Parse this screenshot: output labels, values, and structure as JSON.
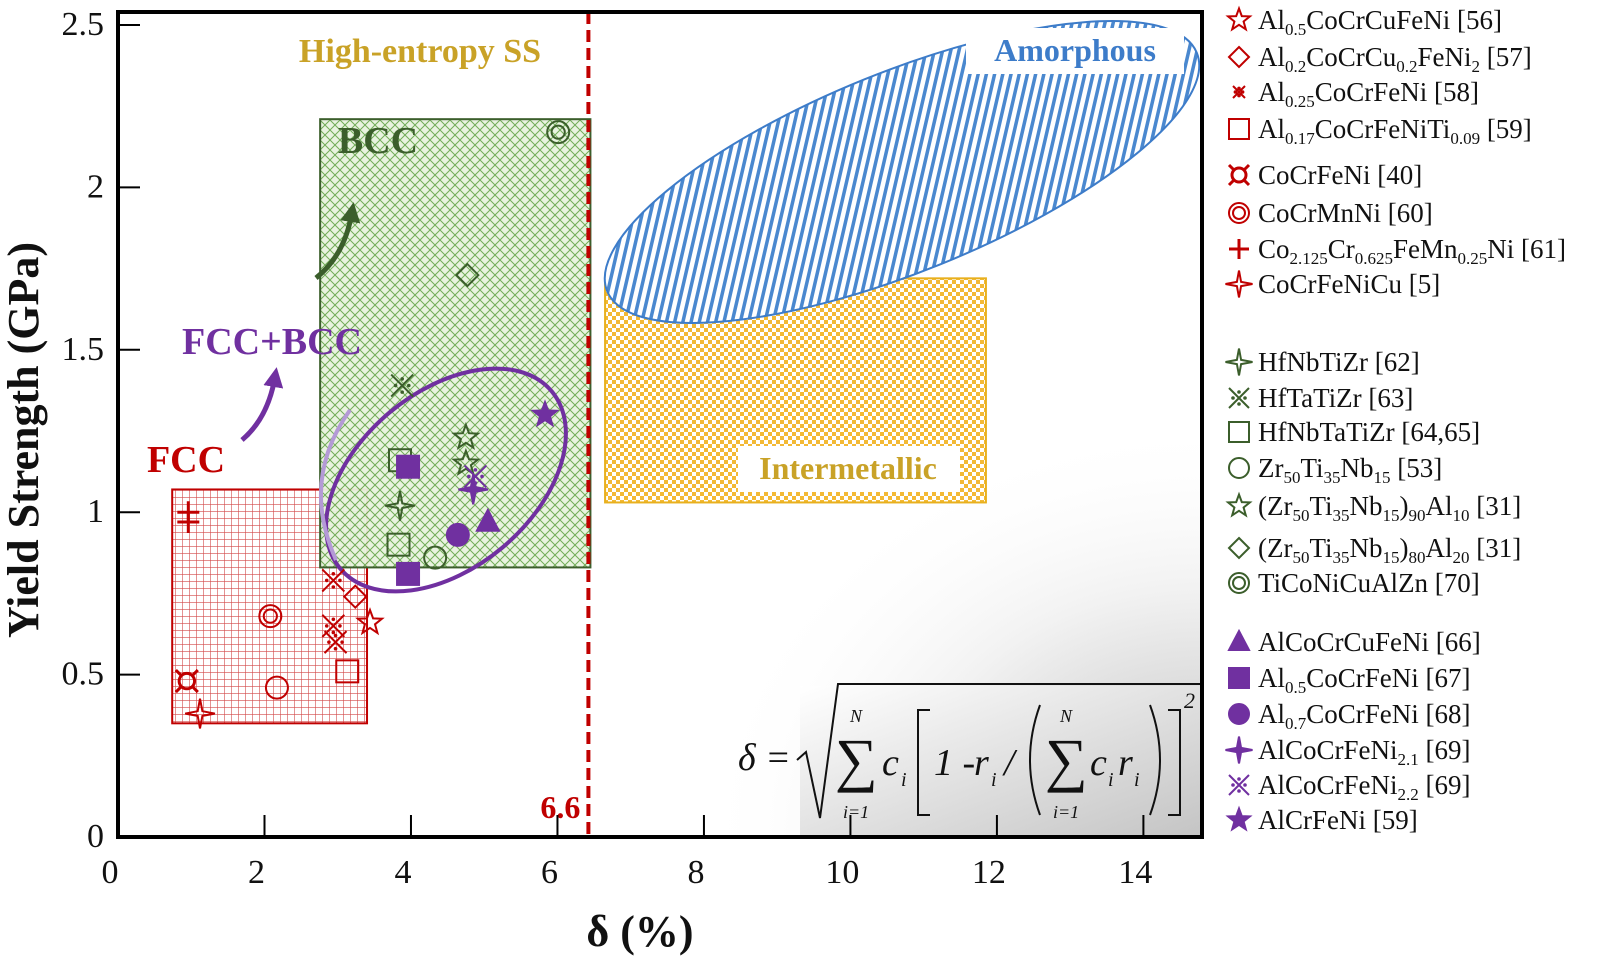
{
  "chart_data": {
    "type": "scatter",
    "xlabel": "δ (%)",
    "ylabel": "Yield Strength (GPa)",
    "xlim": [
      0,
      14.8
    ],
    "ylim": [
      0,
      2.54
    ],
    "xticks": [
      0,
      2,
      4,
      6,
      8,
      10,
      12,
      14
    ],
    "xtick_labels": [
      "0",
      "2",
      "4",
      "6",
      "8",
      "10",
      "12",
      "14"
    ],
    "yticks": [
      0,
      0.5,
      1,
      1.5,
      2,
      2.5
    ],
    "ytick_labels": [
      "0",
      "0.5",
      "1",
      "1.5",
      "2",
      "2.5"
    ],
    "grid": false,
    "legend_placement": "right-outside",
    "colors": {
      "fcc": "#c00000",
      "bcc": "#3b5e2b",
      "mixed": "#7030a0",
      "intermetallic": "#e8b01e",
      "amorphous": "#3d7cc9",
      "hess": "#c9a227"
    },
    "threshold": {
      "x": 6.6,
      "label": "6.6",
      "style": "dashed",
      "color": "#c00000"
    },
    "regions": [
      {
        "name": "FCC",
        "label": "FCC",
        "shape": "rect",
        "x": [
          0.74,
          3.4
        ],
        "y": [
          0.35,
          1.07
        ],
        "color": "#c00000",
        "pattern": "grid"
      },
      {
        "name": "BCC",
        "label": "BCC",
        "shape": "rect",
        "x": [
          2.76,
          6.45
        ],
        "y": [
          0.83,
          2.21
        ],
        "color": "#3b5e2b",
        "pattern": "crosshatch"
      },
      {
        "name": "Intermetallic",
        "label": "Intermetallic",
        "shape": "rect",
        "x": [
          6.65,
          11.85
        ],
        "y": [
          1.03,
          1.72
        ],
        "color": "#e8b01e",
        "pattern": "checker"
      },
      {
        "name": "Amorphous",
        "label": "Amorphous",
        "shape": "ellipse",
        "color": "#3d7cc9",
        "pattern": "stripes"
      },
      {
        "name": "FCC+BCC",
        "label": "FCC+BCC",
        "shape": "ellipse",
        "color": "#7030a0",
        "pattern": "none"
      }
    ],
    "annotations": {
      "hess": "High-entropy SS"
    },
    "series": [
      {
        "parts": [
          [
            "Al",
            ""
          ],
          [
            "0.5",
            "sub"
          ],
          [
            "CoCrCuFeNi [56]",
            ""
          ]
        ],
        "marker": "star5",
        "color": "#c00000",
        "filled": false,
        "points": [
          [
            3.44,
            0.66
          ]
        ]
      },
      {
        "parts": [
          [
            "Al",
            ""
          ],
          [
            "0.2",
            "sub"
          ],
          [
            "CoCrCu",
            ""
          ],
          [
            "0.2",
            "sub"
          ],
          [
            "FeNi",
            ""
          ],
          [
            "2",
            "sub"
          ],
          [
            " [57]",
            ""
          ]
        ],
        "marker": "diamond",
        "color": "#c00000",
        "filled": false,
        "points": [
          [
            3.24,
            0.74
          ]
        ]
      },
      {
        "parts": [
          [
            "Al",
            ""
          ],
          [
            "0.25",
            "sub"
          ],
          [
            "CoCrFeNi [58]",
            ""
          ]
        ],
        "marker": "asterisk",
        "color": "#c00000",
        "filled": false,
        "points": [
          [
            2.94,
            0.79
          ],
          [
            2.94,
            0.65
          ],
          [
            2.97,
            0.6
          ]
        ]
      },
      {
        "parts": [
          [
            "Al",
            ""
          ],
          [
            "0.17",
            "sub"
          ],
          [
            "CoCrFeNiTi",
            ""
          ],
          [
            "0.09",
            "sub"
          ],
          [
            " [59]",
            ""
          ]
        ],
        "marker": "square",
        "color": "#c00000",
        "filled": false,
        "points": [
          [
            3.13,
            0.51
          ]
        ]
      },
      {
        "parts": [
          [
            "CoCrFeNi [40]",
            ""
          ]
        ],
        "marker": "currency",
        "color": "#c00000",
        "filled": false,
        "points": [
          [
            0.94,
            0.48
          ]
        ]
      },
      {
        "parts": [
          [
            "CoCrMnNi [60]",
            ""
          ]
        ],
        "marker": "dcircle",
        "color": "#c00000",
        "filled": false,
        "points": [
          [
            2.08,
            0.68
          ]
        ]
      },
      {
        "parts": [
          [
            "Co",
            ""
          ],
          [
            "2.125",
            "sub"
          ],
          [
            "Cr",
            ""
          ],
          [
            "0.625",
            "sub"
          ],
          [
            "FeMn",
            ""
          ],
          [
            "0.25",
            "sub"
          ],
          [
            "Ni [61]",
            ""
          ]
        ],
        "marker": "plus",
        "color": "#c00000",
        "filled": false,
        "points": [
          [
            0.96,
            1.0
          ],
          [
            0.96,
            0.97
          ]
        ]
      },
      {
        "parts": [
          [
            "CoCrFeNiCu [5]",
            ""
          ]
        ],
        "marker": "star4",
        "color": "#c00000",
        "filled": false,
        "points": [
          [
            1.12,
            0.38
          ]
        ]
      },
      {
        "parts": [
          [
            "HfNbTiZr [62]",
            ""
          ]
        ],
        "marker": "star4",
        "color": "#3b5e2b",
        "filled": false,
        "points": [
          [
            3.85,
            1.02
          ]
        ]
      },
      {
        "parts": [
          [
            "HfTaTiZr [63]",
            ""
          ]
        ],
        "marker": "asterisk",
        "color": "#3b5e2b",
        "filled": false,
        "points": [
          [
            3.88,
            1.39
          ]
        ]
      },
      {
        "parts": [
          [
            "HfNbTaTiZr [64,65]",
            ""
          ]
        ],
        "marker": "square",
        "color": "#3b5e2b",
        "filled": false,
        "points": [
          [
            3.85,
            1.16
          ],
          [
            3.83,
            0.9
          ]
        ]
      },
      {
        "parts": [
          [
            "Zr",
            ""
          ],
          [
            "50",
            "sub"
          ],
          [
            "Ti",
            ""
          ],
          [
            "35",
            "sub"
          ],
          [
            "Nb",
            ""
          ],
          [
            "15",
            "sub"
          ],
          [
            " [53]",
            ""
          ]
        ],
        "marker": "circle",
        "color": "#3b5e2b",
        "filled": false,
        "points": [
          [
            4.33,
            0.86
          ]
        ]
      },
      {
        "parts": [
          [
            "(Zr",
            ""
          ],
          [
            "50",
            "sub"
          ],
          [
            "Ti",
            ""
          ],
          [
            "35",
            "sub"
          ],
          [
            "Nb",
            ""
          ],
          [
            "15",
            "sub"
          ],
          [
            ")",
            ""
          ],
          [
            "90",
            "sub"
          ],
          [
            "Al",
            ""
          ],
          [
            "10",
            "sub"
          ],
          [
            " [31]",
            ""
          ]
        ],
        "marker": "star5",
        "color": "#3b5e2b",
        "filled": false,
        "points": [
          [
            4.75,
            1.23
          ],
          [
            4.75,
            1.15
          ]
        ]
      },
      {
        "parts": [
          [
            "(Zr",
            ""
          ],
          [
            "50",
            "sub"
          ],
          [
            "Ti",
            ""
          ],
          [
            "35",
            "sub"
          ],
          [
            "Nb",
            ""
          ],
          [
            "15",
            "sub"
          ],
          [
            ")",
            ""
          ],
          [
            "80",
            "sub"
          ],
          [
            "Al",
            ""
          ],
          [
            "20",
            "sub"
          ],
          [
            " [31]",
            ""
          ]
        ],
        "marker": "diamond",
        "color": "#3b5e2b",
        "filled": false,
        "points": [
          [
            4.77,
            1.73
          ]
        ]
      },
      {
        "parts": [
          [
            "TiCoNiCuAlZn [70]",
            ""
          ]
        ],
        "marker": "dcircle",
        "color": "#3b5e2b",
        "filled": false,
        "points": [
          [
            6.01,
            2.17
          ]
        ]
      },
      {
        "parts": [
          [
            "AlCoCrCuFeNi [66]",
            ""
          ]
        ],
        "marker": "triangle",
        "color": "#7030a0",
        "filled": true,
        "points": [
          [
            5.05,
            0.97
          ]
        ]
      },
      {
        "parts": [
          [
            "Al",
            ""
          ],
          [
            "0.5",
            "sub"
          ],
          [
            "CoCrFeNi [67]",
            ""
          ]
        ],
        "marker": "square",
        "color": "#7030a0",
        "filled": true,
        "points": [
          [
            3.96,
            1.14
          ],
          [
            3.96,
            0.81
          ]
        ]
      },
      {
        "parts": [
          [
            "Al",
            ""
          ],
          [
            "0.7",
            "sub"
          ],
          [
            "CoCrFeNi [68]",
            ""
          ]
        ],
        "marker": "circle",
        "color": "#7030a0",
        "filled": true,
        "points": [
          [
            4.64,
            0.93
          ]
        ]
      },
      {
        "parts": [
          [
            "AlCoCrFeNi",
            ""
          ],
          [
            "2.1",
            "sub"
          ],
          [
            " [69]",
            ""
          ]
        ],
        "marker": "star4",
        "color": "#7030a0",
        "filled": true,
        "points": [
          [
            4.85,
            1.07
          ]
        ]
      },
      {
        "parts": [
          [
            "AlCoCrFeNi",
            ""
          ],
          [
            "2.2",
            "sub"
          ],
          [
            " [69]",
            ""
          ]
        ],
        "marker": "asterisk",
        "color": "#7030a0",
        "filled": false,
        "points": [
          [
            4.88,
            1.11
          ]
        ]
      },
      {
        "parts": [
          [
            "AlCrFeNi [59]",
            ""
          ]
        ],
        "marker": "star5",
        "color": "#7030a0",
        "filled": true,
        "points": [
          [
            5.83,
            1.3
          ]
        ]
      },
      {
        "parts": [],
        "marker": "circle",
        "color": "#c00000",
        "filled": false,
        "legend": false,
        "points": [
          [
            2.17,
            0.46
          ]
        ]
      }
    ],
    "formula": {
      "lhs": "δ =",
      "sum": "∑",
      "upper": "N",
      "lower": "i=1",
      "c": "c",
      "sub_i": "i",
      "one_minus": "1 - ",
      "r": "r",
      "slash": "/",
      "exponent": "2"
    }
  }
}
